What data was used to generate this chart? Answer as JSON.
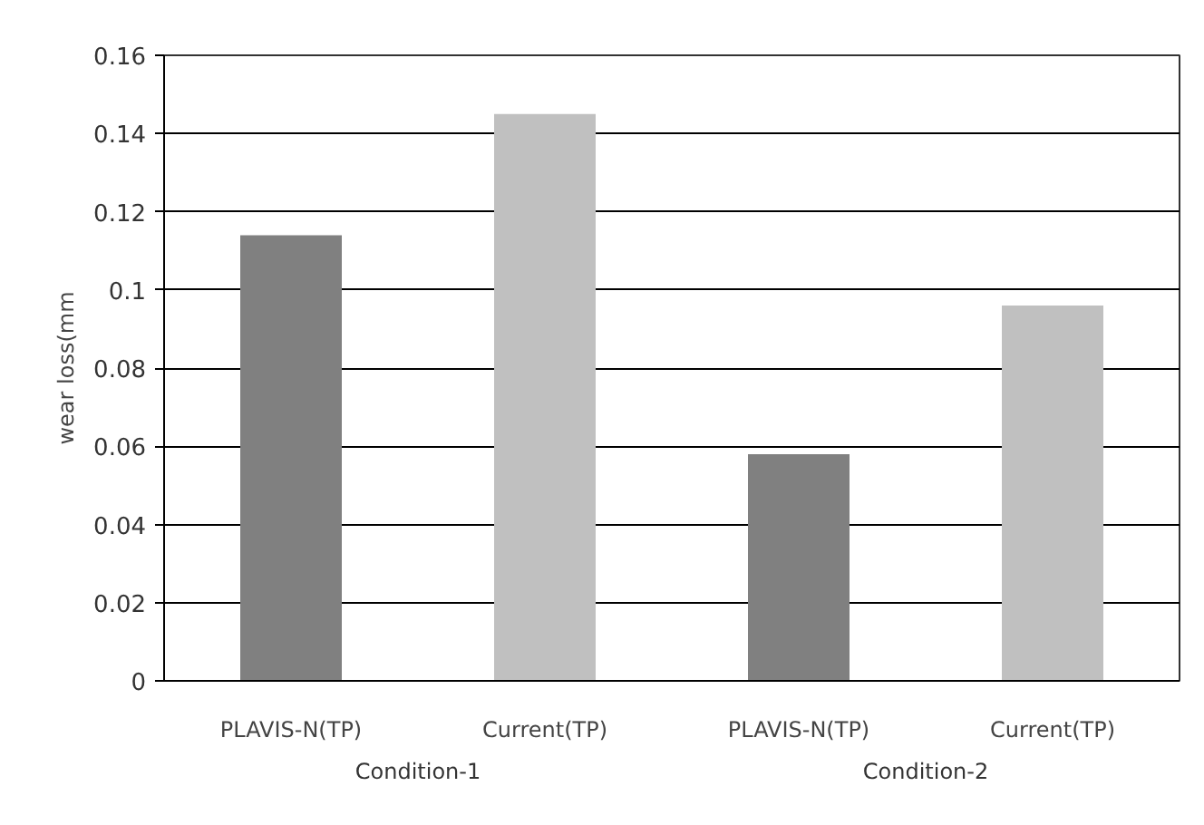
{
  "chart_data": {
    "type": "bar",
    "ylabel": "wear loss(mm",
    "categories": [
      "PLAVIS-N(TP)",
      "Current(TP)",
      "PLAVIS-N(TP)",
      "Current(TP)"
    ],
    "values": [
      0.114,
      0.145,
      0.058,
      0.096
    ],
    "colors": [
      "#808080",
      "#c0c0c0",
      "#808080",
      "#c0c0c0"
    ],
    "ylim": [
      0,
      0.16
    ],
    "yticks": [
      0,
      0.02,
      0.04,
      0.06,
      0.08,
      0.1,
      0.12,
      0.14,
      0.16
    ],
    "grid": "y",
    "annotations": [
      "Condition-1",
      "Condition-2"
    ]
  }
}
